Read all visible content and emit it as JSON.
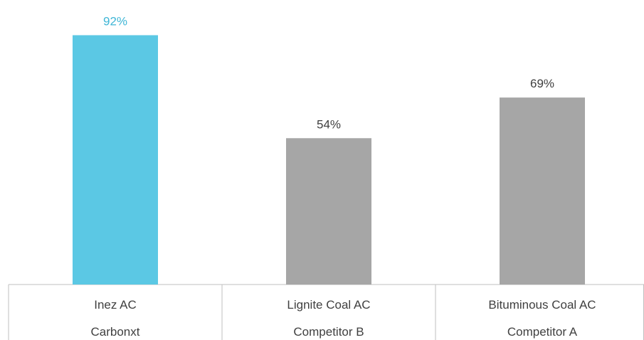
{
  "chart_data": {
    "type": "bar",
    "categories": [
      {
        "name": "Inez AC",
        "group": "Carbonxt"
      },
      {
        "name": "Lignite Coal AC",
        "group": "Competitor B"
      },
      {
        "name": "Bituminous Coal AC",
        "group": "Competitor A"
      }
    ],
    "values": [
      92,
      54,
      69
    ],
    "value_labels": [
      "92%",
      "54%",
      "69%"
    ],
    "ylim": [
      0,
      100
    ],
    "grid": false,
    "legend": "none",
    "colors": {
      "highlight": "#5BC8E4",
      "default": "#A6A6A6",
      "highlight_label": "#3FB6D6",
      "default_label": "#404040",
      "axis": "#BFBFBF"
    },
    "highlight_index": 0
  }
}
